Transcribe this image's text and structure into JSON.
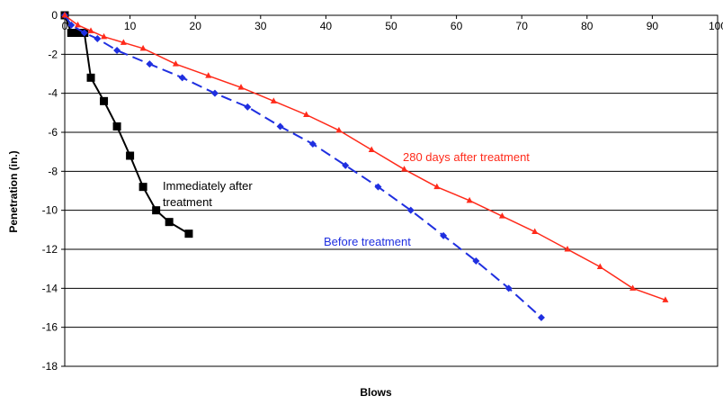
{
  "chart_data": {
    "type": "line",
    "title": "",
    "xlabel": "Blows",
    "ylabel": "Penetration (in.)",
    "xlim": [
      0,
      100
    ],
    "ylim": [
      -18,
      0
    ],
    "x_ticks": [
      "0",
      "10",
      "20",
      "30",
      "40",
      "50",
      "60",
      "70",
      "80",
      "90",
      "100"
    ],
    "y_ticks": [
      "0",
      "-2",
      "-4",
      "-6",
      "-8",
      "-10",
      "-12",
      "-14",
      "-16",
      "-18"
    ],
    "x_axis_position": "top",
    "grid": "horizontal",
    "series": [
      {
        "color": "#000000",
        "marker": "square",
        "dash": "solid",
        "points": [
          [
            0,
            0
          ],
          [
            1,
            -0.9
          ],
          [
            2,
            -0.9
          ],
          [
            3,
            -0.9
          ],
          [
            4,
            -3.2
          ],
          [
            6,
            -4.4
          ],
          [
            8,
            -5.7
          ],
          [
            10,
            -7.2
          ],
          [
            12,
            -8.8
          ],
          [
            14,
            -10
          ],
          [
            16,
            -10.6
          ],
          [
            19,
            -11.2
          ]
        ]
      },
      {
        "color": "#1f2fe0",
        "marker": "diamond",
        "dash": "dashed",
        "points": [
          [
            0,
            0
          ],
          [
            1,
            -0.5
          ],
          [
            3,
            -0.9
          ],
          [
            5,
            -1.2
          ],
          [
            8,
            -1.8
          ],
          [
            13,
            -2.5
          ],
          [
            18,
            -3.2
          ],
          [
            23,
            -4
          ],
          [
            28,
            -4.7
          ],
          [
            33,
            -5.7
          ],
          [
            38,
            -6.6
          ],
          [
            43,
            -7.7
          ],
          [
            48,
            -8.8
          ],
          [
            53,
            -10
          ],
          [
            58,
            -11.3
          ],
          [
            63,
            -12.6
          ],
          [
            68,
            -14
          ],
          [
            73,
            -15.5
          ]
        ]
      },
      {
        "color": "#ff2a1a",
        "marker": "triangle",
        "dash": "solid",
        "points": [
          [
            0,
            0
          ],
          [
            2,
            -0.5
          ],
          [
            4,
            -0.8
          ],
          [
            6,
            -1.1
          ],
          [
            9,
            -1.4
          ],
          [
            12,
            -1.7
          ],
          [
            17,
            -2.5
          ],
          [
            22,
            -3.1
          ],
          [
            27,
            -3.7
          ],
          [
            32,
            -4.4
          ],
          [
            37,
            -5.1
          ],
          [
            42,
            -5.9
          ],
          [
            47,
            -6.9
          ],
          [
            52,
            -7.9
          ],
          [
            57,
            -8.8
          ],
          [
            62,
            -9.5
          ],
          [
            67,
            -10.3
          ],
          [
            72,
            -11.1
          ],
          [
            77,
            -12
          ],
          [
            82,
            -12.9
          ],
          [
            87,
            -14
          ],
          [
            92,
            -14.6
          ]
        ]
      }
    ],
    "annotations": [
      {
        "text": "Immediately after",
        "color": "#000000"
      },
      {
        "text": "treatment",
        "color": "#000000"
      },
      {
        "text": "Before treatment",
        "color": "#1f2fe0"
      },
      {
        "text": "280 days after treatment",
        "color": "#ff2a1a"
      }
    ]
  }
}
